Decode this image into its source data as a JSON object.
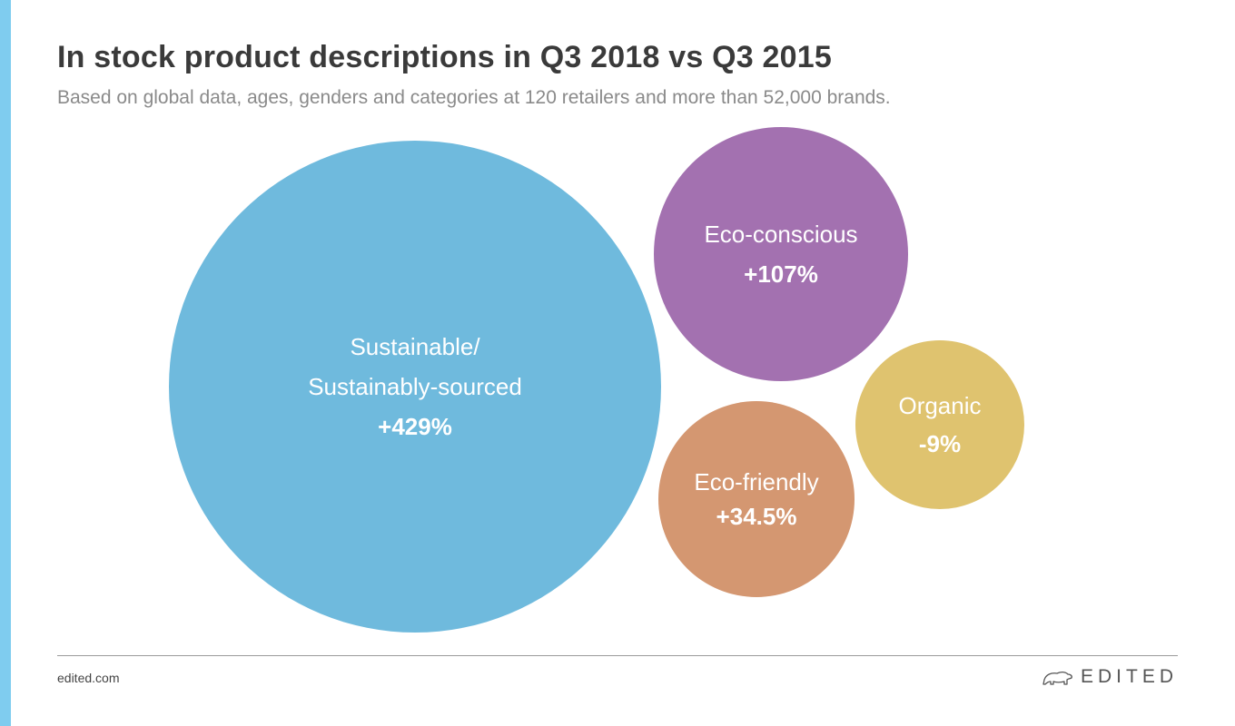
{
  "header": {
    "title": "In stock product descriptions in Q3 2018 vs Q3 2015",
    "subtitle": "Based on global data, ages, genders and categories at 120 retailers and more than 52,000 brands."
  },
  "footer": {
    "url": "edited.com",
    "brand": "EDITED",
    "brand_icon": "polar-bear-icon"
  },
  "colors": {
    "accent_bar": "#7fccef",
    "sustainable": "#6fbadd",
    "eco_conscious": "#a371b0",
    "organic": "#dfc36f",
    "eco_friendly": "#d49771"
  },
  "chart_data": {
    "type": "bubble",
    "title": "In stock product descriptions in Q3 2018 vs Q3 2015",
    "subtitle": "Based on global data, ages, genders and categories at 120 retailers and more than 52,000 brands.",
    "bubbles": [
      {
        "label_lines": [
          "Sustainable/",
          "Sustainably-sourced"
        ],
        "value_label": "+429%",
        "value": 429,
        "color": "#6fbadd"
      },
      {
        "label_lines": [
          "Eco-conscious"
        ],
        "value_label": "+107%",
        "value": 107,
        "color": "#a371b0"
      },
      {
        "label_lines": [
          "Organic"
        ],
        "value_label": "-9%",
        "value": -9,
        "color": "#dfc36f"
      },
      {
        "label_lines": [
          "Eco-friendly"
        ],
        "value_label": "+34.5%",
        "value": 34.5,
        "color": "#d49771"
      }
    ]
  }
}
